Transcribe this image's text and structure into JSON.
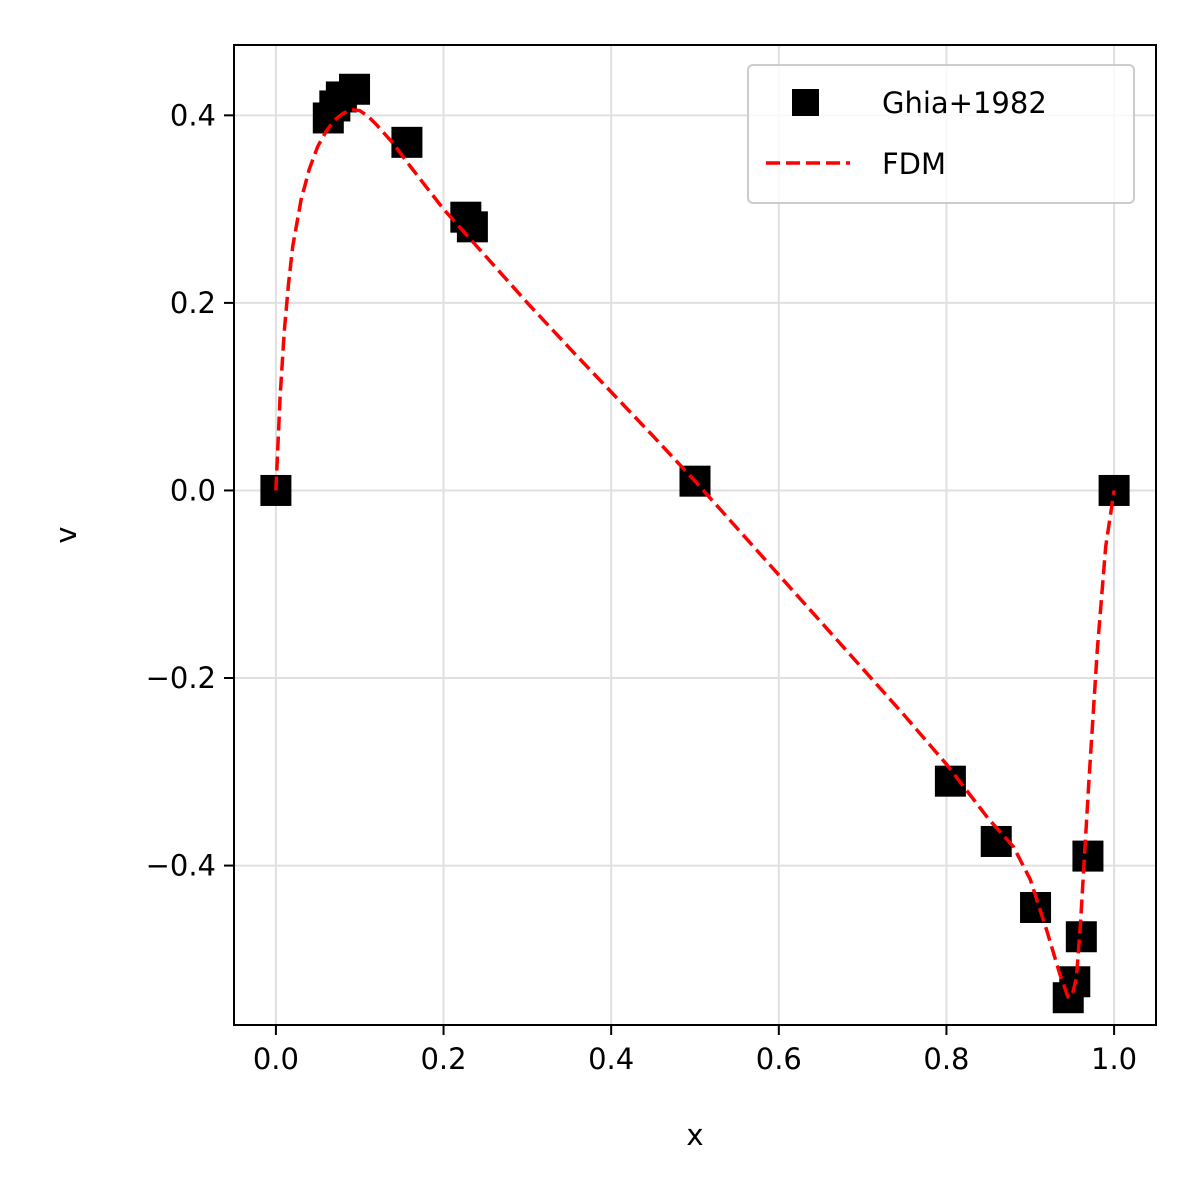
{
  "chart_data": {
    "type": "scatter",
    "xlabel": "x",
    "ylabel": "v",
    "xlim": [
      -0.05,
      1.05
    ],
    "ylim": [
      -0.57,
      0.475
    ],
    "xticks": [
      0.0,
      0.2,
      0.4,
      0.6,
      0.8,
      1.0
    ],
    "xtick_labels": [
      "0.0",
      "0.2",
      "0.4",
      "0.6",
      "0.8",
      "1.0"
    ],
    "yticks": [
      0.4,
      0.2,
      0.0,
      -0.2,
      -0.4
    ],
    "ytick_labels": [
      "0.4",
      "0.2",
      "0.0",
      "−0.2",
      "−0.4"
    ],
    "grid": true,
    "legend_position": "upper right",
    "series": [
      {
        "name": "Ghia+1982",
        "kind": "scatter",
        "marker": "square",
        "color": "#000000",
        "x": [
          0.0,
          0.0625,
          0.0703,
          0.0781,
          0.0938,
          0.1563,
          0.2266,
          0.2344,
          0.5,
          0.8047,
          0.8594,
          0.9063,
          0.9453,
          0.9531,
          0.9609,
          0.9688,
          1.0
        ],
        "y": [
          0.0,
          0.3972,
          0.41,
          0.4196,
          0.4278,
          0.3712,
          0.2914,
          0.2811,
          0.0099,
          -0.31,
          -0.3743,
          -0.4447,
          -0.5409,
          -0.5239,
          -0.4759,
          -0.3899,
          0.0
        ]
      },
      {
        "name": "FDM",
        "kind": "line",
        "style": "dashed",
        "color": "#ff0000",
        "x": [
          0.0,
          0.005,
          0.01,
          0.015,
          0.02,
          0.03,
          0.04,
          0.05,
          0.06,
          0.07,
          0.08,
          0.09,
          0.1,
          0.11,
          0.12,
          0.14,
          0.16,
          0.2,
          0.25,
          0.3,
          0.35,
          0.4,
          0.45,
          0.5,
          0.55,
          0.6,
          0.65,
          0.7,
          0.75,
          0.8,
          0.85,
          0.88,
          0.9,
          0.92,
          0.935,
          0.945,
          0.95,
          0.955,
          0.96,
          0.97,
          0.98,
          0.99,
          1.0
        ],
        "y": [
          0.0,
          0.1,
          0.17,
          0.22,
          0.26,
          0.31,
          0.343,
          0.367,
          0.383,
          0.395,
          0.402,
          0.406,
          0.405,
          0.399,
          0.39,
          0.37,
          0.346,
          0.3,
          0.25,
          0.2,
          0.152,
          0.105,
          0.058,
          0.01,
          -0.04,
          -0.09,
          -0.14,
          -0.19,
          -0.24,
          -0.292,
          -0.35,
          -0.38,
          -0.415,
          -0.47,
          -0.515,
          -0.54,
          -0.538,
          -0.52,
          -0.46,
          -0.31,
          -0.17,
          -0.06,
          0.0
        ]
      }
    ]
  }
}
